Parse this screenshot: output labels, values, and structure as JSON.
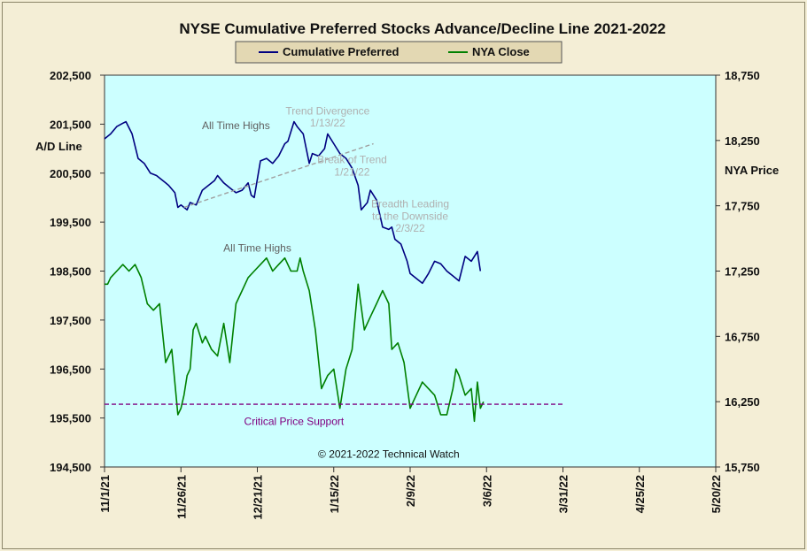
{
  "chart_data": {
    "type": "line",
    "title": "NYSE Cumulative  Preferred Stocks Advance/Decline  Line 2021-2022",
    "ylabel_left": "A/D Line",
    "ylabel_right": "NYA Price",
    "x_ticks": [
      "11/1/21",
      "11/26/21",
      "12/21/21",
      "1/15/22",
      "2/9/22",
      "3/6/22",
      "3/31/22",
      "4/25/22",
      "5/20/22"
    ],
    "x_range_days": [
      0,
      200
    ],
    "y_left_ticks": [
      "202,500",
      "201,500",
      "200,500",
      "199,500",
      "198,500",
      "197,500",
      "196,500",
      "195,500",
      "194,500"
    ],
    "y_left_range": [
      194500,
      202500
    ],
    "y_right_ticks": [
      "18,750",
      "18,250",
      "17,750",
      "17,250",
      "16,750",
      "16,250",
      "15,750"
    ],
    "y_right_range": [
      15750,
      18750
    ],
    "legend": {
      "position": "top-center"
    },
    "colors": {
      "plot_bg": "#ccffff",
      "ad_line": "#000080",
      "nya": "#008000",
      "support": "#800080",
      "trend": "#a0a0a0"
    },
    "series": [
      {
        "name": "Cumulative Preferred",
        "axis": "left",
        "x": [
          "11/1/21",
          "11/3/21",
          "11/5/21",
          "11/7/21",
          "11/8/21",
          "11/10/21",
          "11/12/21",
          "11/14/21",
          "11/16/21",
          "11/18/21",
          "11/19/21",
          "11/21/21",
          "11/22/21",
          "11/24/21",
          "11/25/21",
          "11/26/21",
          "11/28/21",
          "11/29/21",
          "12/1/21",
          "12/2/21",
          "12/3/21",
          "12/5/21",
          "12/7/21",
          "12/8/21",
          "12/10/21",
          "12/12/21",
          "12/14/21",
          "12/16/21",
          "12/18/21",
          "12/19/21",
          "12/20/21",
          "12/22/21",
          "12/24/21",
          "12/26/21",
          "12/28/21",
          "12/30/21",
          "12/31/21",
          "1/2/22",
          "1/3/22",
          "1/5/22",
          "1/7/22",
          "1/8/22",
          "1/10/22",
          "1/12/22",
          "1/13/22",
          "1/15/22",
          "1/17/22",
          "1/19/22",
          "1/21/22",
          "1/23/22",
          "1/24/22",
          "1/26/22",
          "1/27/22",
          "1/29/22",
          "1/31/22",
          "2/2/22",
          "2/3/22",
          "2/4/22",
          "2/6/22",
          "2/8/22",
          "2/9/22",
          "2/11/22",
          "2/13/22",
          "2/15/22",
          "2/17/22",
          "2/19/22",
          "2/21/22",
          "2/23/22",
          "2/25/22",
          "2/27/22",
          "3/1/22",
          "3/3/22",
          "3/4/22"
        ],
        "values": [
          201200,
          201300,
          201450,
          201520,
          201550,
          201300,
          200800,
          200700,
          200500,
          200450,
          200400,
          200300,
          200250,
          200100,
          199800,
          199850,
          199750,
          199900,
          199850,
          200000,
          200150,
          200250,
          200350,
          200450,
          200300,
          200200,
          200100,
          200150,
          200300,
          200050,
          200000,
          200750,
          200800,
          200700,
          200850,
          201100,
          201150,
          201550,
          201450,
          201300,
          200700,
          200900,
          200850,
          201000,
          201300,
          201100,
          200900,
          200800,
          200600,
          200250,
          199750,
          199900,
          200150,
          199950,
          199400,
          199350,
          199400,
          199150,
          199050,
          198700,
          198450,
          198350,
          198250,
          198450,
          198700,
          198650,
          198500,
          198400,
          198300,
          198800,
          198700,
          198900,
          198500
        ]
      },
      {
        "name": "NYA Close",
        "axis": "right",
        "x": [
          "11/1/21",
          "11/2/21",
          "11/3/21",
          "11/5/21",
          "11/7/21",
          "11/9/21",
          "11/11/21",
          "11/13/21",
          "11/15/21",
          "11/17/21",
          "11/19/21",
          "11/21/21",
          "11/23/21",
          "11/25/21",
          "11/26/21",
          "11/27/21",
          "11/28/21",
          "11/29/21",
          "11/30/21",
          "12/1/21",
          "12/3/21",
          "12/4/21",
          "12/6/21",
          "12/8/21",
          "12/10/21",
          "12/12/21",
          "12/14/21",
          "12/16/21",
          "12/18/21",
          "12/20/21",
          "12/22/21",
          "12/24/21",
          "12/26/21",
          "12/28/21",
          "12/30/21",
          "1/1/22",
          "1/3/22",
          "1/4/22",
          "1/5/22",
          "1/7/22",
          "1/9/22",
          "1/11/22",
          "1/13/22",
          "1/15/22",
          "1/17/22",
          "1/19/22",
          "1/21/22",
          "1/23/22",
          "1/25/22",
          "1/27/22",
          "1/29/22",
          "1/31/22",
          "2/2/22",
          "2/3/22",
          "2/5/22",
          "2/7/22",
          "2/9/22",
          "2/11/22",
          "2/13/22",
          "2/15/22",
          "2/17/22",
          "2/19/22",
          "2/21/22",
          "2/23/22",
          "2/24/22",
          "2/25/22",
          "2/27/22",
          "3/1/22",
          "3/2/22",
          "3/3/22",
          "3/4/22",
          "3/5/22"
        ],
        "values": [
          17150,
          17150,
          17200,
          17250,
          17300,
          17250,
          17300,
          17200,
          17000,
          16950,
          17000,
          16550,
          16650,
          16150,
          16200,
          16300,
          16450,
          16500,
          16800,
          16850,
          16700,
          16750,
          16650,
          16600,
          16850,
          16550,
          17000,
          17100,
          17200,
          17250,
          17300,
          17350,
          17250,
          17300,
          17350,
          17250,
          17250,
          17350,
          17250,
          17100,
          16800,
          16350,
          16450,
          16500,
          16200,
          16500,
          16650,
          17150,
          16800,
          16900,
          17000,
          17100,
          17000,
          16650,
          16700,
          16550,
          16200,
          16300,
          16400,
          16350,
          16300,
          16150,
          16150,
          16350,
          16500,
          16450,
          16300,
          16350,
          16100,
          16400,
          16200,
          16250
        ]
      },
      {
        "name": "Critical Price Support",
        "axis": "right",
        "x": [
          "11/1/21",
          "3/31/22"
        ],
        "values": [
          16230,
          16230
        ]
      },
      {
        "name": "trend",
        "axis": "left",
        "x": [
          "11/27/21",
          "1/28/22"
        ],
        "values": [
          199800,
          201100
        ]
      }
    ],
    "annotations": [
      {
        "text": "All Time Highs",
        "x": "12/14/21",
        "y": 201400,
        "color": "#606060"
      },
      {
        "text": "Trend  Divergence",
        "x": "1/13/22",
        "y": 201700,
        "color": "#b0b0b0"
      },
      {
        "text": "1/13/22",
        "x": "1/13/22",
        "y": 201450,
        "color": "#b0b0b0"
      },
      {
        "text": "Break  of Trend",
        "x": "1/21/22",
        "y": 200700,
        "color": "#b0b0b0"
      },
      {
        "text": "1/21/22",
        "x": "1/21/22",
        "y": 200450,
        "color": "#b0b0b0"
      },
      {
        "text": "Breadth Leading",
        "x": "2/9/22",
        "y": 199800,
        "color": "#b0b0b0"
      },
      {
        "text": "to the Downside",
        "x": "2/9/22",
        "y": 199550,
        "color": "#b0b0b0"
      },
      {
        "text": "2/3/22",
        "x": "2/9/22",
        "y": 199300,
        "color": "#b0b0b0"
      },
      {
        "text": "All Time Highs",
        "x": "12/21/21",
        "y": 17400,
        "color": "#606060",
        "axis": "right"
      },
      {
        "text": "Critical Price Support",
        "x": "1/2/22",
        "y": 16070,
        "color": "#800080",
        "axis": "right"
      },
      {
        "text": "© 2021-2022  Technical  Watch",
        "x": "2/2/22",
        "y": 15820,
        "color": "#111111",
        "axis": "right"
      }
    ]
  }
}
